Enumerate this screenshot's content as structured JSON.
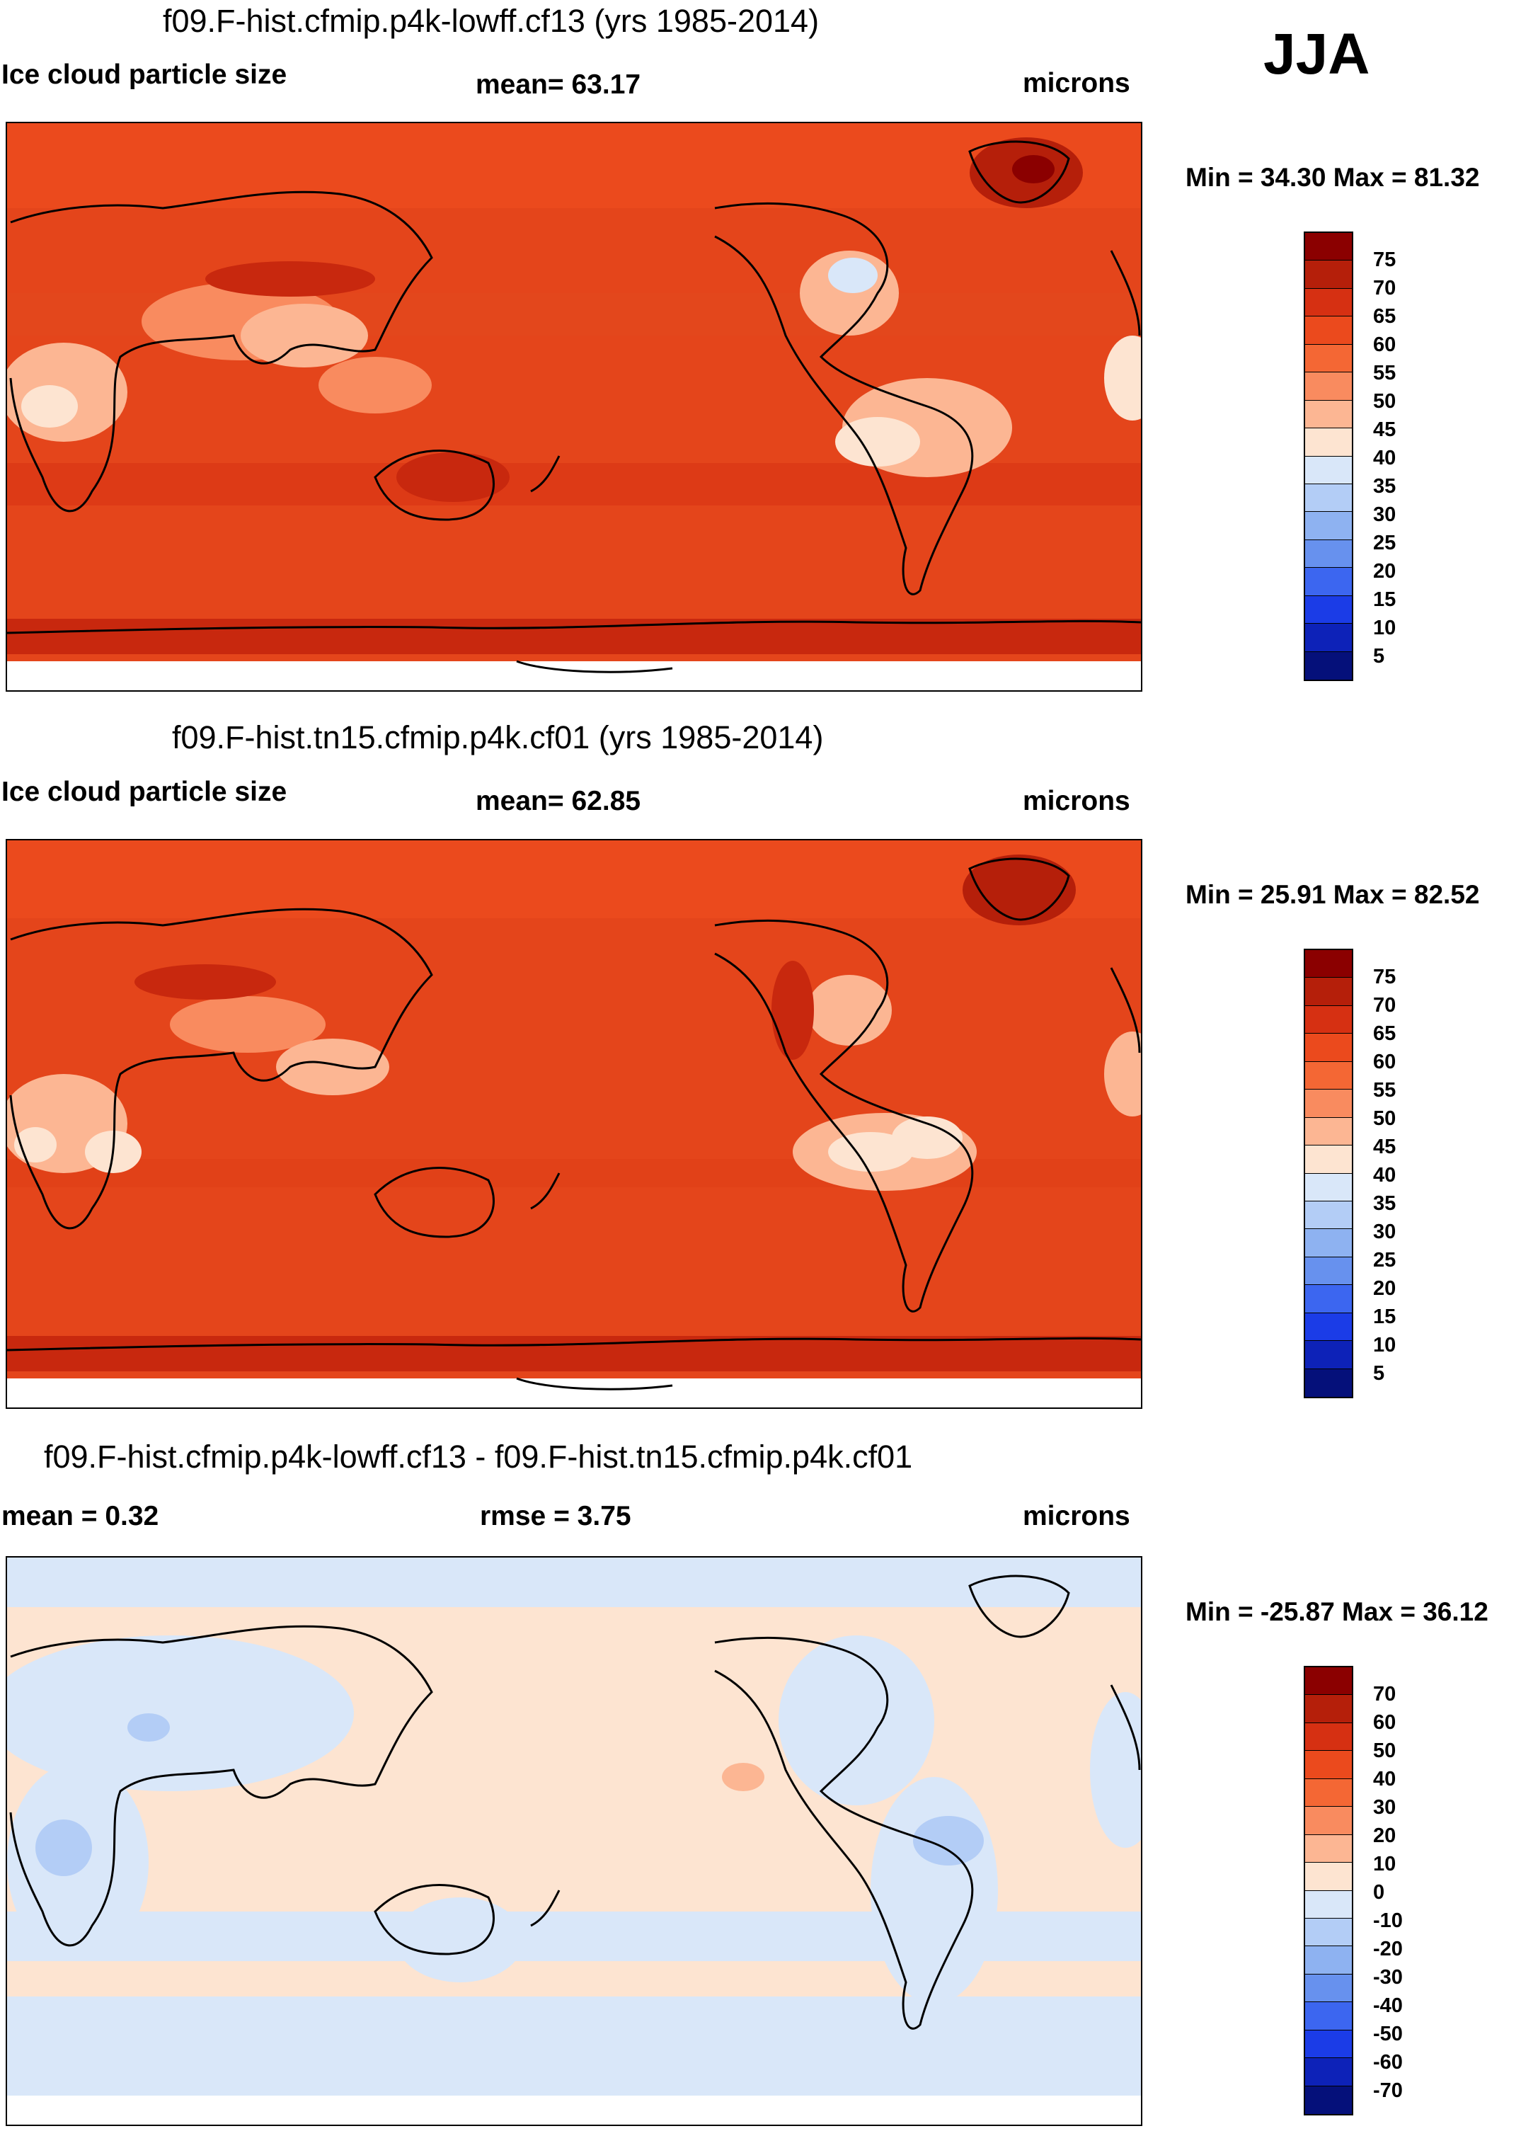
{
  "season": "JJA",
  "panels": [
    {
      "title": "f09.F-hist.cfmip.p4k-lowff.cf13 (yrs 1985-2014)",
      "left_label": "Ice cloud particle size",
      "center_label": "mean=  63.17",
      "right_label": "microns",
      "minmax": "Min =  34.30 Max =  81.32",
      "colorbar": {
        "ticks": [
          "75",
          "70",
          "65",
          "60",
          "55",
          "50",
          "45",
          "40",
          "35",
          "30",
          "25",
          "20",
          "15",
          "10",
          "5"
        ],
        "colors": [
          "#8b0000",
          "#b51f0a",
          "#d63012",
          "#eb4a1d",
          "#f46734",
          "#f98b5f",
          "#fcb693",
          "#fde4d1",
          "#d9e7f9",
          "#b3cdf6",
          "#8eb2f1",
          "#6791ee",
          "#3c66f0",
          "#1b3ce7",
          "#0d22b8",
          "#05107a"
        ]
      }
    },
    {
      "title": "f09.F-hist.tn15.cfmip.p4k.cf01 (yrs 1985-2014)",
      "left_label": "Ice cloud particle size",
      "center_label": "mean=  62.85",
      "right_label": "microns",
      "minmax": "Min =  25.91 Max =  82.52",
      "colorbar": {
        "ticks": [
          "75",
          "70",
          "65",
          "60",
          "55",
          "50",
          "45",
          "40",
          "35",
          "30",
          "25",
          "20",
          "15",
          "10",
          "5"
        ],
        "colors": [
          "#8b0000",
          "#b51f0a",
          "#d63012",
          "#eb4a1d",
          "#f46734",
          "#f98b5f",
          "#fcb693",
          "#fde4d1",
          "#d9e7f9",
          "#b3cdf6",
          "#8eb2f1",
          "#6791ee",
          "#3c66f0",
          "#1b3ce7",
          "#0d22b8",
          "#05107a"
        ]
      }
    },
    {
      "title": "f09.F-hist.cfmip.p4k-lowff.cf13 - f09.F-hist.tn15.cfmip.p4k.cf01",
      "left_label": "mean =   0.32",
      "center_label": "rmse =   3.75",
      "right_label": "microns",
      "minmax": "Min = -25.87 Max =  36.12",
      "colorbar": {
        "ticks": [
          "70",
          "60",
          "50",
          "40",
          "30",
          "20",
          "10",
          "0",
          "-10",
          "-20",
          "-30",
          "-40",
          "-50",
          "-60",
          "-70"
        ],
        "colors": [
          "#8b0000",
          "#b51f0a",
          "#d63012",
          "#eb4a1d",
          "#f46734",
          "#f98b5f",
          "#fcb693",
          "#fde4d1",
          "#d9e7f9",
          "#b3cdf6",
          "#8eb2f1",
          "#6791ee",
          "#3c66f0",
          "#1b3ce7",
          "#0d22b8",
          "#05107a"
        ]
      }
    }
  ]
}
